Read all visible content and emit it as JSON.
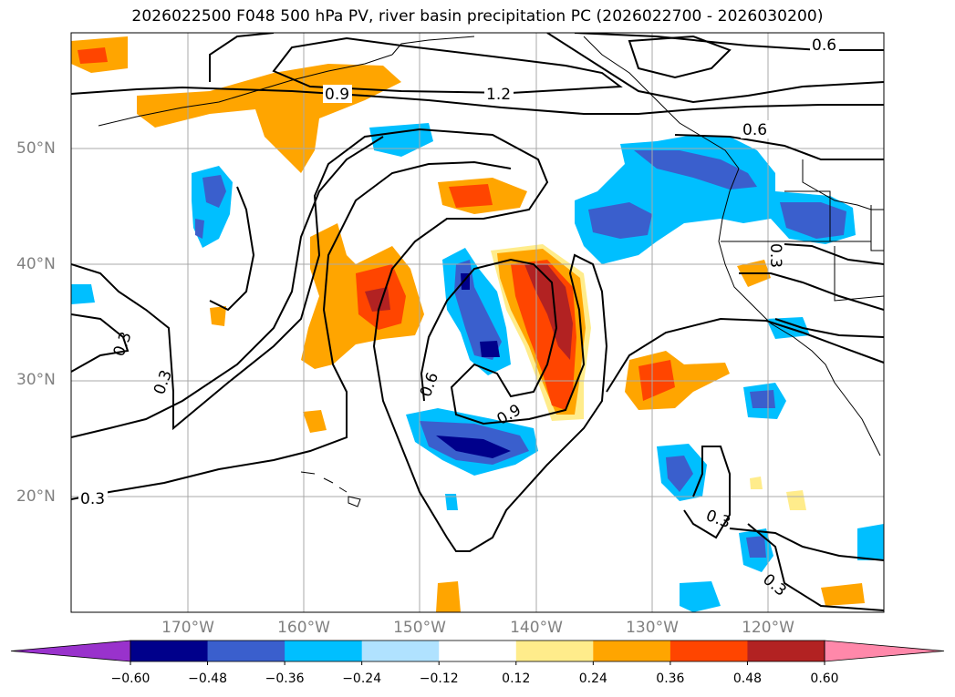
{
  "title": "2026022500 F048 500 hPa PV, river basin precipitation PC (2026022700 - 2026030200)",
  "lat_labels": [
    {
      "text": "50°N",
      "lat": 50
    },
    {
      "text": "40°N",
      "lat": 40
    },
    {
      "text": "30°N",
      "lat": 30
    },
    {
      "text": "20°N",
      "lat": 20
    }
  ],
  "lon_labels": [
    {
      "text": "170°W",
      "lon": -170
    },
    {
      "text": "160°W",
      "lon": -160
    },
    {
      "text": "150°W",
      "lon": -150
    },
    {
      "text": "140°W",
      "lon": -140
    },
    {
      "text": "130°W",
      "lon": -130
    },
    {
      "text": "120°W",
      "lon": -120
    }
  ],
  "contour_labels": [
    "0.6",
    "0.9",
    "1.2",
    "0.6",
    "0.3",
    "0.3",
    "0.6",
    "0.9",
    "0.3",
    "0.3",
    "0.3",
    "0.3"
  ],
  "colorbar": {
    "colors": [
      "#9932cc",
      "#00008b",
      "#3a5fcd",
      "#00bfff",
      "#b0e2ff",
      "#ffffff",
      "#ffec8b",
      "#ffa500",
      "#ff4500",
      "#b22222",
      "#ff88aa"
    ],
    "ticks": [
      "−0.60",
      "−0.48",
      "−0.36",
      "−0.24",
      "−0.12",
      "0.12",
      "0.24",
      "0.36",
      "0.48",
      "0.60"
    ]
  }
}
